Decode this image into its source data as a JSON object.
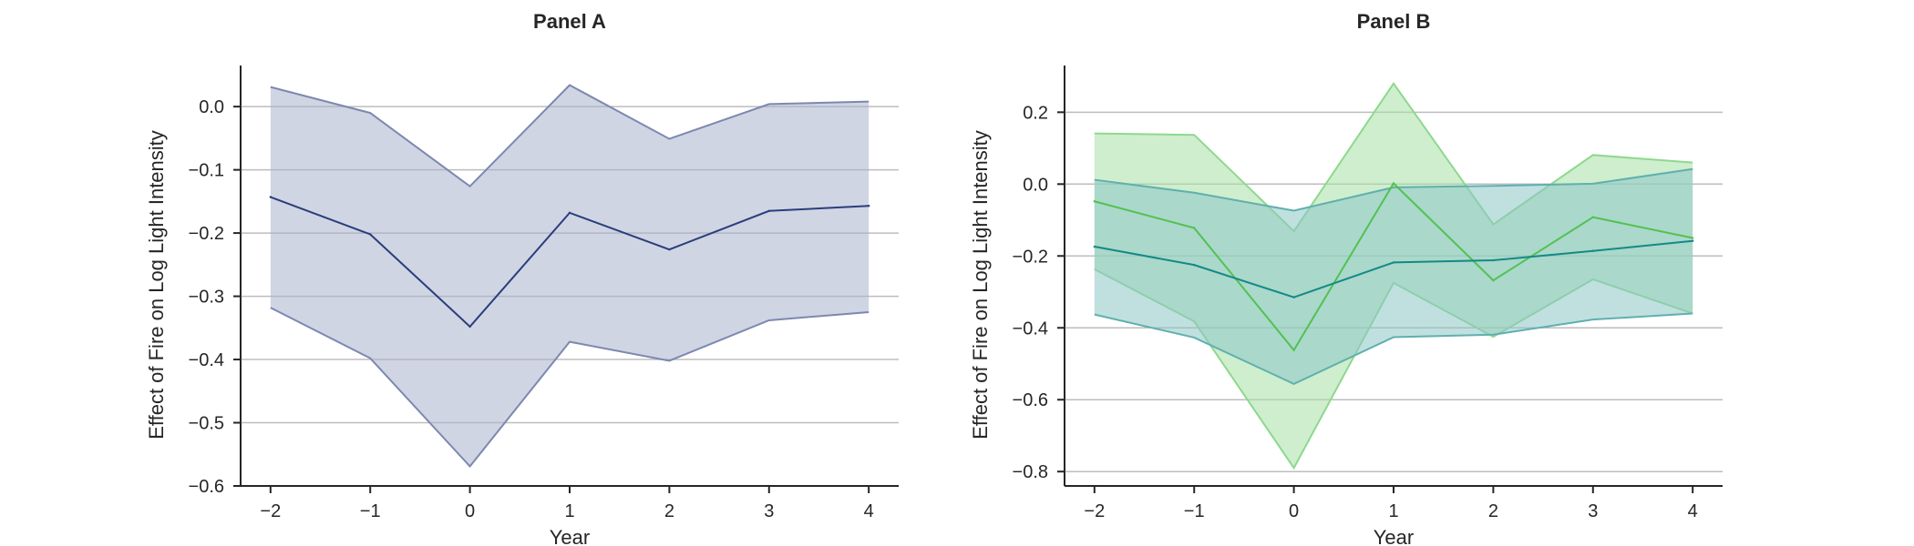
{
  "chart_data": [
    {
      "type": "line",
      "title": "Panel A",
      "xlabel": "Year",
      "ylabel": "Effect of Fire on Log Light Intensity",
      "x": [
        -2,
        -1,
        0,
        1,
        2,
        3,
        4
      ],
      "xticks": [
        "−2",
        "−1",
        "0",
        "1",
        "2",
        "3",
        "4"
      ],
      "xlim": [
        -2.3,
        4.3
      ],
      "ylim": [
        -0.6,
        0.065
      ],
      "yticks": [
        0.0,
        -0.1,
        -0.2,
        -0.3,
        -0.4,
        -0.5,
        -0.6
      ],
      "ytick_labels": [
        "0.0",
        "−0.1",
        "−0.2",
        "−0.3",
        "−0.4",
        "−0.5",
        "−0.6"
      ],
      "grid": "horizontal",
      "series": [
        {
          "values": [
            -0.143,
            -0.202,
            -0.348,
            -0.168,
            -0.226,
            -0.165,
            -0.157
          ],
          "lower": [
            -0.318,
            -0.398,
            -0.569,
            -0.372,
            -0.402,
            -0.338,
            -0.325
          ],
          "upper": [
            0.031,
            -0.01,
            -0.126,
            0.034,
            -0.051,
            0.004,
            0.008
          ],
          "color": "#2b3d7c",
          "fill": "#aab2cc",
          "band_edge": "#7c88b0"
        }
      ]
    },
    {
      "type": "line",
      "title": "Panel B",
      "xlabel": "Year",
      "ylabel": "Effect of Fire on Log Light Intensity",
      "x": [
        -2,
        -1,
        0,
        1,
        2,
        3,
        4
      ],
      "xticks": [
        "−2",
        "−1",
        "0",
        "1",
        "2",
        "3",
        "4"
      ],
      "xlim": [
        -2.3,
        4.3
      ],
      "ylim": [
        -0.84,
        0.33
      ],
      "yticks": [
        0.2,
        0.0,
        -0.2,
        -0.4,
        -0.6,
        -0.8
      ],
      "ytick_labels": [
        "0.2",
        "0.0",
        "−0.2",
        "−0.4",
        "−0.6",
        "−0.8"
      ],
      "grid": "horizontal",
      "series": [
        {
          "values": [
            -0.048,
            -0.122,
            -0.462,
            0.002,
            -0.268,
            -0.092,
            -0.15
          ],
          "lower": [
            -0.237,
            -0.382,
            -0.79,
            -0.275,
            -0.425,
            -0.265,
            -0.36
          ],
          "upper": [
            0.141,
            0.137,
            -0.131,
            0.28,
            -0.112,
            0.081,
            0.06
          ],
          "color": "#52c152",
          "fill": "#a6e0a6",
          "band_edge": "#8ed88e"
        },
        {
          "values": [
            -0.174,
            -0.225,
            -0.315,
            -0.218,
            -0.212,
            -0.186,
            -0.158
          ],
          "lower": [
            -0.363,
            -0.427,
            -0.556,
            -0.426,
            -0.419,
            -0.377,
            -0.36
          ],
          "upper": [
            0.012,
            -0.024,
            -0.074,
            -0.009,
            -0.005,
            0.001,
            0.042
          ],
          "color": "#138a87",
          "fill": "#8dc6c6",
          "band_edge": "#5fb0ae"
        }
      ]
    }
  ]
}
